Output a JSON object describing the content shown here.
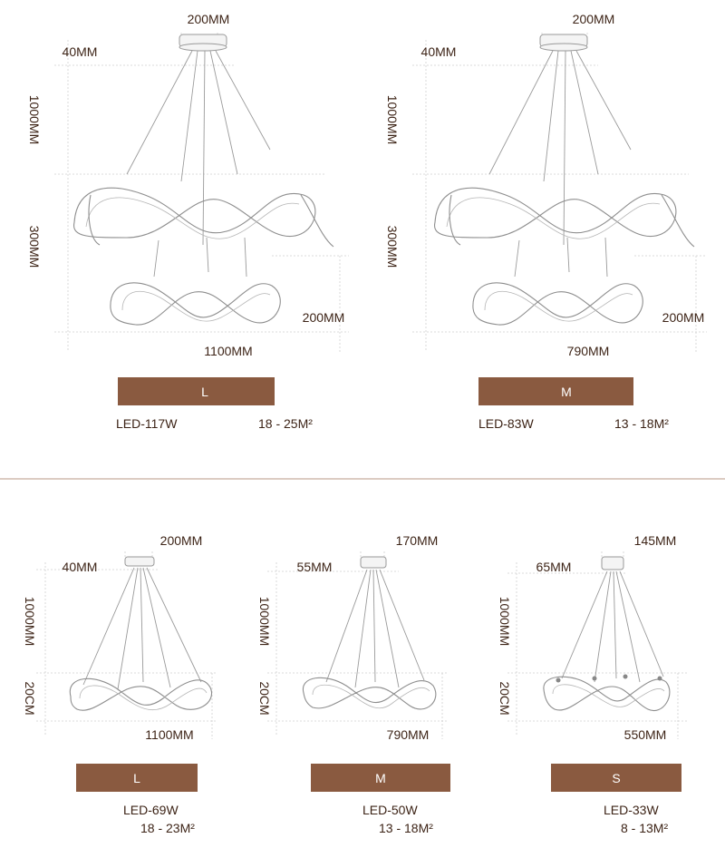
{
  "colors": {
    "label_bg": "#8a5a40",
    "label_text": "#ffffff",
    "text": "#3d2417",
    "divider": "#b89884"
  },
  "top": {
    "large": {
      "canopy_width": "200MM",
      "canopy_height": "40MM",
      "hang": "1000MM",
      "spacing": "300MM",
      "lower_height": "200MM",
      "width": "1100MM",
      "size_label": "L",
      "power": "LED-117W",
      "area": "18 - 25M²"
    },
    "medium": {
      "canopy_width": "200MM",
      "canopy_height": "40MM",
      "hang": "1000MM",
      "spacing": "300MM",
      "lower_height": "200MM",
      "width": "790MM",
      "size_label": "M",
      "power": "LED-83W",
      "area": "13 - 18M²"
    }
  },
  "bottom": {
    "large": {
      "canopy_width": "200MM",
      "canopy_height": "40MM",
      "hang": "1000MM",
      "ring_height": "20CM",
      "width": "1100MM",
      "size_label": "L",
      "power": "LED-69W",
      "area": "18 - 23M²"
    },
    "medium": {
      "canopy_width": "170MM",
      "canopy_height": "55MM",
      "hang": "1000MM",
      "ring_height": "20CM",
      "width": "790MM",
      "size_label": "M",
      "power": "LED-50W",
      "area": "13 - 18M²"
    },
    "small": {
      "canopy_width": "145MM",
      "canopy_height": "65MM",
      "hang": "1000MM",
      "ring_height": "20CM",
      "width": "550MM",
      "size_label": "S",
      "power": "LED-33W",
      "area": "8 - 13M²"
    }
  }
}
